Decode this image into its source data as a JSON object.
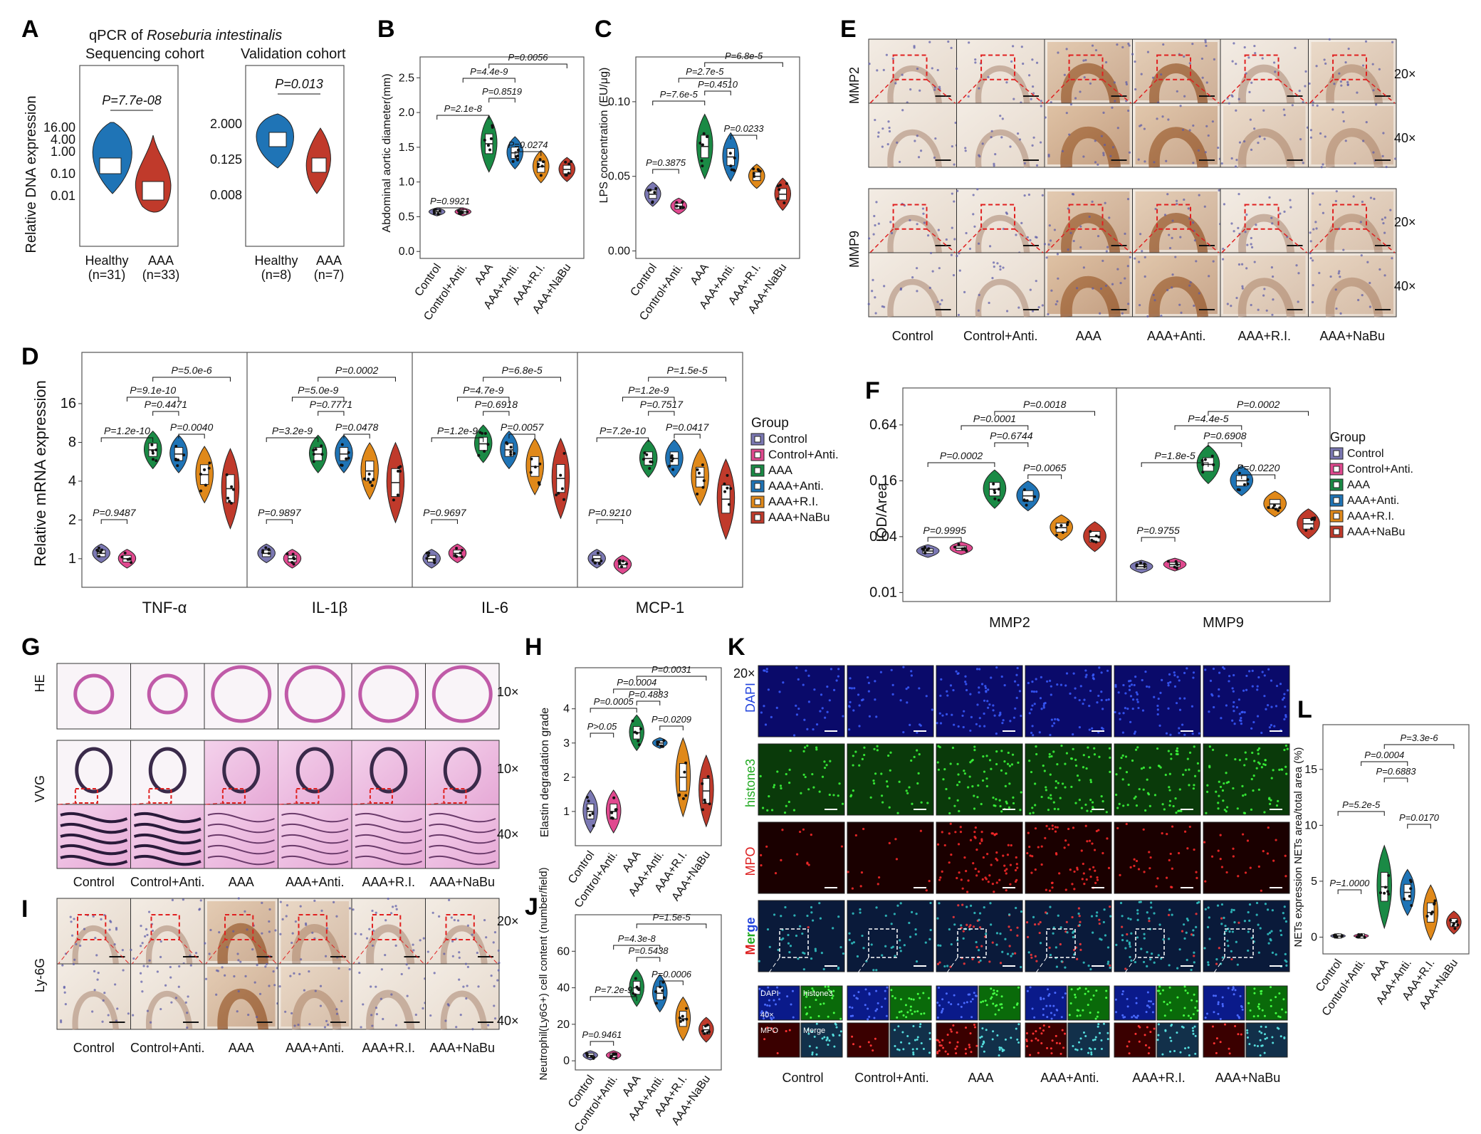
{
  "colors": {
    "Control": "#7b78b3",
    "Control+Anti.": "#e0498f",
    "AAA": "#1a8a45",
    "AAA+Anti.": "#1f74b6",
    "AAA+R.I.": "#e0891a",
    "AAA+NaBu": "#c03a2b",
    "Healthy": "#1f74b6",
    "AAADisease": "#c03a2b",
    "ihc_bg": "#efe6dc",
    "he_bg": "#efc9e6",
    "fluor_bg": "#04041a",
    "dashed_box": "#e02020"
  },
  "groups": [
    "Control",
    "Control+Anti.",
    "AAA",
    "AAA+Anti.",
    "AAA+R.I.",
    "AAA+NaBu"
  ],
  "panelA": {
    "letter": "A",
    "title_prefix": "qPCR of ",
    "title_species": "Roseburia intestinalis",
    "ylabel": "Relative DNA expression",
    "left": {
      "title": "Sequencing cohort",
      "ticks": [
        "16.00",
        "4.00",
        "1.00",
        "0.10",
        "0.01"
      ],
      "pval": "P=7.7e-08",
      "groups": [
        [
          "Healthy",
          "(n=31)"
        ],
        [
          "AAA",
          "(n=33)"
        ]
      ]
    },
    "right": {
      "title": "Validation cohort",
      "ticks": [
        "2.000",
        "0.125",
        "0.008"
      ],
      "pval": "P=0.013",
      "groups": [
        [
          "Healthy",
          "(n=8)"
        ],
        [
          "AAA",
          "(n=7)"
        ]
      ]
    }
  },
  "panelB": {
    "letter": "B",
    "ylabel": "Abdominal aortic diameter(mm)",
    "ticks": [
      "0.0",
      "0.5",
      "1.0",
      "1.5",
      "2.0",
      "2.5"
    ],
    "pvals": [
      "P=0.9921",
      "P=2.1e-8",
      "P=4.4e-9",
      "P=0.8519",
      "P=0.0274",
      "P=0.0056"
    ],
    "chart_data": {
      "type": "violin",
      "categories": [
        "Control",
        "Control+Anti.",
        "AAA",
        "AAA+Anti.",
        "AAA+R.I.",
        "AAA+NaBu"
      ],
      "values": [
        0.57,
        0.57,
        1.55,
        1.42,
        1.22,
        1.18
      ],
      "ylabel": "Abdominal aortic diameter(mm)",
      "ylim": [
        0,
        2.8
      ]
    }
  },
  "panelC": {
    "letter": "C",
    "ylabel": "LPS concentration (EU/μg)",
    "ticks": [
      "0.00",
      "0.05",
      "0.10"
    ],
    "pvals": [
      "P=0.3875",
      "P=7.6e-5",
      "P=2.7e-5",
      "P=0.4510",
      "P=0.0233",
      "P=6.8e-5"
    ],
    "chart_data": {
      "type": "violin",
      "categories": [
        "Control",
        "Control+Anti.",
        "AAA",
        "AAA+Anti.",
        "AAA+R.I.",
        "AAA+NaBu"
      ],
      "values": [
        0.038,
        0.03,
        0.07,
        0.063,
        0.05,
        0.038
      ],
      "ylabel": "LPS concentration (EU/μg)",
      "ylim": [
        -0.005,
        0.13
      ]
    }
  },
  "panelD": {
    "letter": "D",
    "ylabel": "Relative mRNA expression",
    "ticks": [
      "16",
      "8",
      "4",
      "2",
      "1"
    ],
    "facets": [
      {
        "name": "TNF-α",
        "pvals": [
          "P=0.9487",
          "P=1.2e-10",
          "P=9.1e-10",
          "P=0.4471",
          "P=0.0040",
          "P=5.0e-6"
        ]
      },
      {
        "name": "IL-1β",
        "pvals": [
          "P=0.9897",
          "P=3.2e-9",
          "P=5.0e-9",
          "P=0.7771",
          "P=0.0478",
          "P=0.0002"
        ]
      },
      {
        "name": "IL-6",
        "pvals": [
          "P=0.9697",
          "P=1.2e-9",
          "P=4.7e-9",
          "P=0.6918",
          "P=0.0057",
          "P=6.8e-5"
        ]
      },
      {
        "name": "MCP-1",
        "pvals": [
          "P=0.9210",
          "P=7.2e-10",
          "P=1.2e-9",
          "P=0.7517",
          "P=0.0417",
          "P=1.5e-5"
        ]
      }
    ],
    "legend_title": "Group",
    "chart_data": {
      "type": "violin",
      "scale": "log2",
      "categories": [
        "Control",
        "Control+Anti.",
        "AAA",
        "AAA+Anti.",
        "AAA+R.I.",
        "AAA+NaBu"
      ],
      "series": [
        {
          "name": "TNF-α",
          "values": [
            1.1,
            1.0,
            7.0,
            6.5,
            4.5,
            3.5
          ]
        },
        {
          "name": "IL-1β",
          "values": [
            1.1,
            1.0,
            6.5,
            6.5,
            4.8,
            3.9
          ]
        },
        {
          "name": "IL-6",
          "values": [
            1.0,
            1.1,
            7.8,
            7.0,
            5.2,
            4.2
          ]
        },
        {
          "name": "MCP-1",
          "values": [
            1.0,
            0.9,
            6.0,
            6.0,
            4.3,
            2.9
          ]
        }
      ],
      "ylabel": "Relative mRNA expression"
    }
  },
  "panelE": {
    "letter": "E",
    "rows": [
      "MMP2",
      "MMP9"
    ],
    "mags": [
      "20×",
      "40×"
    ]
  },
  "panelF": {
    "letter": "F",
    "ylabel": "IOD/Area",
    "ticks": [
      "0.64",
      "0.16",
      "0.04",
      "0.01"
    ],
    "facets": [
      {
        "name": "MMP2",
        "pvals": [
          "P=0.9995",
          "P=0.0002",
          "P=0.0001",
          "P=0.6744",
          "P=0.0065",
          "P=0.0018"
        ]
      },
      {
        "name": "MMP9",
        "pvals": [
          "P=0.9755",
          "P=1.8e-5",
          "P=4.4e-5",
          "P=0.6908",
          "P=0.0220",
          "P=0.0002"
        ]
      }
    ],
    "legend_title": "Group",
    "chart_data": {
      "type": "violin",
      "scale": "log2",
      "categories": [
        "Control",
        "Control+Anti.",
        "AAA",
        "AAA+Anti.",
        "AAA+R.I.",
        "AAA+NaBu"
      ],
      "series": [
        {
          "name": "MMP2",
          "values": [
            0.028,
            0.03,
            0.13,
            0.11,
            0.05,
            0.04
          ]
        },
        {
          "name": "MMP9",
          "values": [
            0.019,
            0.02,
            0.24,
            0.16,
            0.09,
            0.055
          ]
        }
      ],
      "ylabel": "IOD/Area"
    }
  },
  "panelG": {
    "letter": "G",
    "rows": [
      "HE",
      "VVG"
    ],
    "mags": [
      "10×",
      "10×",
      "40×"
    ]
  },
  "panelH": {
    "letter": "H",
    "ylabel": "Elastin degradation grade",
    "ticks": [
      "1",
      "2",
      "3",
      "4"
    ],
    "pvals": [
      "P>0.05",
      "P=0.0005",
      "P=0.0004",
      "P=0.4883",
      "P=0.0209",
      "P=0.0031"
    ],
    "chart_data": {
      "type": "violin",
      "categories": [
        "Control",
        "Control+Anti.",
        "AAA",
        "AAA+Anti.",
        "AAA+R.I.",
        "AAA+NaBu"
      ],
      "values": [
        1,
        1,
        3.3,
        3.0,
        2.0,
        1.6
      ],
      "ylabel": "Elastin degradation grade",
      "ylim": [
        0,
        5.2
      ]
    }
  },
  "panelI": {
    "letter": "I",
    "row": "Ly-6G",
    "mags": [
      "20×",
      "40×"
    ]
  },
  "panelJ": {
    "letter": "J",
    "ylabel": "Neutrophil(Ly6G+) cell content (number/field)",
    "ticks": [
      "0",
      "20",
      "40",
      "60"
    ],
    "pvals": [
      "P=0.9461",
      "P=7.2e-9",
      "P=4.3e-8",
      "P=0.5438",
      "P=0.0006",
      "P=1.5e-5"
    ],
    "chart_data": {
      "type": "violin",
      "categories": [
        "Control",
        "Control+Anti.",
        "AAA",
        "AAA+Anti.",
        "AAA+R.I.",
        "AAA+NaBu"
      ],
      "values": [
        3,
        3,
        40,
        37,
        23,
        17
      ],
      "ylabel": "Neutrophil(Ly6G+) cell content (number/field)",
      "ylim": [
        -5,
        80
      ]
    }
  },
  "panelK": {
    "letter": "K",
    "mag": "20×",
    "rows": [
      "DAPI",
      "histone3",
      "MPO",
      "Merge"
    ],
    "merge_chars": [
      "M",
      "e",
      "r",
      "g",
      "e"
    ],
    "zoom_labels": [
      "DAPI",
      "histone3",
      "MPO",
      "Merge",
      "40×"
    ]
  },
  "panelL": {
    "letter": "L",
    "ylabel": "NETs expression NETs area/total area (%)",
    "ticks": [
      "0",
      "5",
      "10",
      "15"
    ],
    "pvals": [
      "P=1.0000",
      "P=5.2e-5",
      "P=0.0004",
      "P=0.6883",
      "P=0.0170",
      "P=3.3e-6"
    ],
    "chart_data": {
      "type": "violin",
      "categories": [
        "Control",
        "Control+Anti.",
        "AAA",
        "AAA+Anti.",
        "AAA+R.I.",
        "AAA+NaBu"
      ],
      "values": [
        0.1,
        0.1,
        4.5,
        4.0,
        2.2,
        1.3
      ],
      "ylabel": "NETs expression NETs area/total area (%)",
      "ylim": [
        -1.5,
        19
      ]
    }
  }
}
